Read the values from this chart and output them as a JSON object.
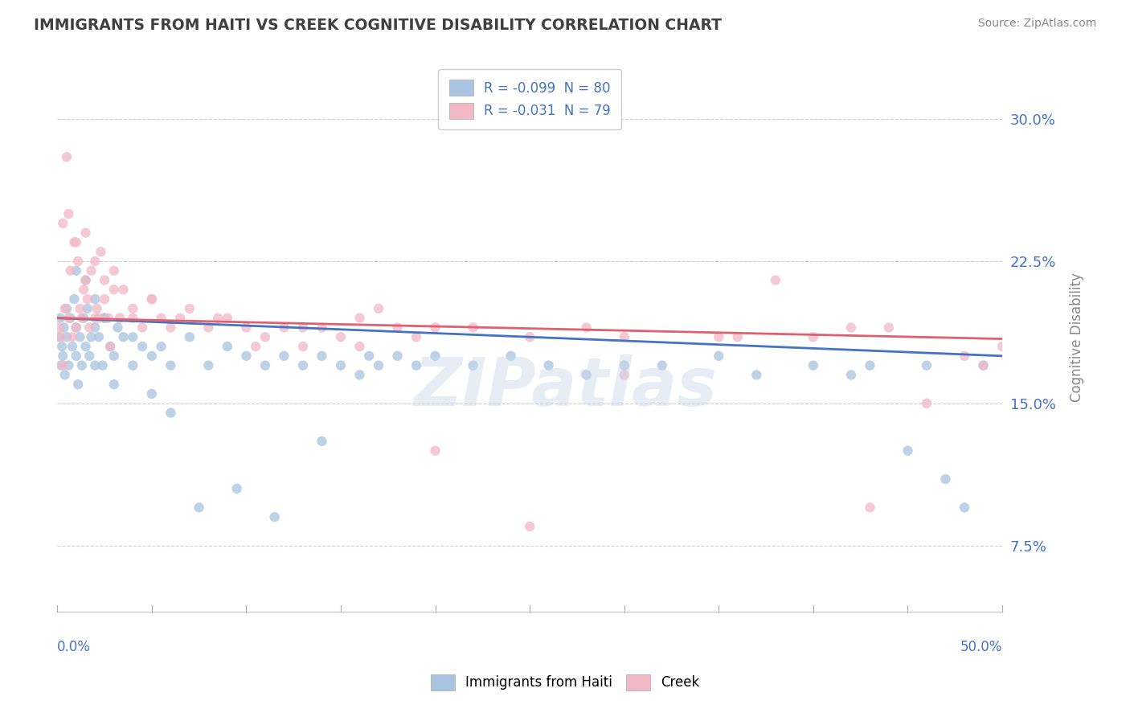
{
  "title": "IMMIGRANTS FROM HAITI VS CREEK COGNITIVE DISABILITY CORRELATION CHART",
  "source": "Source: ZipAtlas.com",
  "ylabel": "Cognitive Disability",
  "xmin": 0.0,
  "xmax": 50.0,
  "ymin": 4.0,
  "ymax": 33.0,
  "yticks": [
    7.5,
    15.0,
    22.5,
    30.0
  ],
  "ytick_labels": [
    "7.5%",
    "15.0%",
    "22.5%",
    "30.0%"
  ],
  "series1_label": "Immigrants from Haiti",
  "series2_label": "Creek",
  "dot_color1": "#a8c4e0",
  "dot_color2": "#f2b8c6",
  "line_color1": "#4472c4",
  "line_color2": "#e06070",
  "R1": -0.099,
  "N1": 80,
  "R2": -0.031,
  "N2": 79,
  "background_color": "#ffffff",
  "grid_color": "#cccccc",
  "title_color": "#404040",
  "axis_label_color": "#4472c4",
  "watermark": "ZIPatlas",
  "haiti_x": [
    0.1,
    0.15,
    0.2,
    0.25,
    0.3,
    0.35,
    0.4,
    0.5,
    0.5,
    0.6,
    0.7,
    0.8,
    0.9,
    1.0,
    1.0,
    1.1,
    1.2,
    1.3,
    1.4,
    1.5,
    1.6,
    1.7,
    1.8,
    2.0,
    2.0,
    2.2,
    2.4,
    2.5,
    2.8,
    3.0,
    3.2,
    3.5,
    4.0,
    4.5,
    5.0,
    5.5,
    6.0,
    7.0,
    8.0,
    9.0,
    10.0,
    11.0,
    12.0,
    13.0,
    14.0,
    15.0,
    16.0,
    17.0,
    18.0,
    19.0,
    20.0,
    22.0,
    24.0,
    26.0,
    28.0,
    30.0,
    32.0,
    35.0,
    37.0,
    40.0,
    42.0,
    43.0,
    45.0,
    46.0,
    47.0,
    48.0,
    49.0,
    1.0,
    1.5,
    2.0,
    2.5,
    3.0,
    4.0,
    5.0,
    6.0,
    7.5,
    9.5,
    11.5,
    14.0,
    16.5
  ],
  "haiti_y": [
    18.5,
    19.5,
    17.0,
    18.0,
    17.5,
    19.0,
    16.5,
    18.5,
    20.0,
    17.0,
    19.5,
    18.0,
    20.5,
    17.5,
    19.0,
    16.0,
    18.5,
    17.0,
    19.5,
    18.0,
    20.0,
    17.5,
    18.5,
    19.0,
    17.0,
    18.5,
    17.0,
    19.5,
    18.0,
    17.5,
    19.0,
    18.5,
    17.0,
    18.0,
    17.5,
    18.0,
    17.0,
    18.5,
    17.0,
    18.0,
    17.5,
    17.0,
    17.5,
    17.0,
    17.5,
    17.0,
    16.5,
    17.0,
    17.5,
    17.0,
    17.5,
    17.0,
    17.5,
    17.0,
    16.5,
    17.0,
    17.0,
    17.5,
    16.5,
    17.0,
    16.5,
    17.0,
    12.5,
    17.0,
    11.0,
    9.5,
    17.0,
    22.0,
    21.5,
    20.5,
    19.5,
    16.0,
    18.5,
    15.5,
    14.5,
    9.5,
    10.5,
    9.0,
    13.0,
    17.5
  ],
  "creek_x": [
    0.1,
    0.2,
    0.3,
    0.4,
    0.5,
    0.6,
    0.7,
    0.8,
    0.9,
    1.0,
    1.1,
    1.2,
    1.3,
    1.4,
    1.5,
    1.6,
    1.7,
    1.8,
    2.0,
    2.1,
    2.3,
    2.5,
    2.7,
    3.0,
    3.3,
    3.5,
    4.0,
    4.5,
    5.0,
    5.5,
    6.0,
    7.0,
    8.0,
    9.0,
    10.0,
    11.0,
    12.0,
    13.0,
    14.0,
    15.0,
    16.0,
    17.0,
    18.0,
    19.0,
    20.0,
    22.0,
    25.0,
    28.0,
    30.0,
    35.0,
    38.0,
    40.0,
    42.0,
    44.0,
    46.0,
    48.0,
    50.0,
    0.3,
    0.6,
    1.0,
    1.5,
    2.0,
    2.5,
    3.0,
    4.0,
    5.0,
    6.5,
    8.5,
    10.5,
    13.0,
    16.0,
    20.0,
    25.0,
    30.0,
    36.0,
    43.0,
    49.0,
    2.2,
    2.8
  ],
  "creek_y": [
    19.0,
    18.5,
    17.0,
    20.0,
    28.0,
    19.5,
    22.0,
    18.5,
    23.5,
    19.0,
    22.5,
    20.0,
    19.5,
    21.0,
    21.5,
    20.5,
    19.0,
    22.0,
    19.5,
    20.0,
    23.0,
    20.5,
    19.5,
    22.0,
    19.5,
    21.0,
    20.0,
    19.0,
    20.5,
    19.5,
    19.0,
    20.0,
    19.0,
    19.5,
    19.0,
    18.5,
    19.0,
    19.0,
    19.0,
    18.5,
    19.5,
    20.0,
    19.0,
    18.5,
    19.0,
    19.0,
    18.5,
    19.0,
    18.5,
    18.5,
    21.5,
    18.5,
    19.0,
    19.0,
    15.0,
    17.5,
    18.0,
    24.5,
    25.0,
    23.5,
    24.0,
    22.5,
    21.5,
    21.0,
    19.5,
    20.5,
    19.5,
    19.5,
    18.0,
    18.0,
    18.0,
    12.5,
    8.5,
    16.5,
    18.5,
    9.5,
    17.0,
    19.5,
    18.0
  ]
}
